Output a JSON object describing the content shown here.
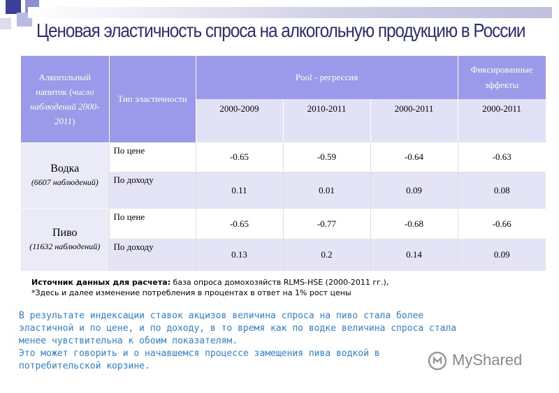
{
  "title": "Ценовая эластичность спроса на алкогольную продукцию в России",
  "table": {
    "header": {
      "drink_col": "Алкогольный напиток (",
      "drink_col_italic": "число наблюдений 2000-2011",
      "drink_col_end": ")",
      "type_col": "Тип эластичности",
      "pool": "Pool - регрессия",
      "fixed": "Фиксированные эффекты",
      "years": [
        "2000-2009",
        "2010-2011",
        "2000-2011",
        "2000-2011"
      ]
    },
    "groups": [
      {
        "name": "Водка",
        "obs": "(6607 наблюдений)",
        "rows": [
          {
            "type": "По цене",
            "values": [
              "-0.65",
              "-0.59",
              "-0.64",
              "-0.63"
            ]
          },
          {
            "type": "По доходу",
            "values": [
              "0.11",
              "0.01",
              "0.09",
              "0.08"
            ]
          }
        ]
      },
      {
        "name": "Пиво",
        "obs": "(11632 наблюдений)",
        "rows": [
          {
            "type": "По цене",
            "values": [
              "-0.65",
              "-0.77",
              "-0.68",
              "-0.66"
            ]
          },
          {
            "type": "По доходу",
            "values": [
              "0.13",
              "0.2",
              "0.14",
              "0.09"
            ]
          }
        ]
      }
    ]
  },
  "source": {
    "label": "Источник данных для расчета:",
    "text": " база опроса домохозяйств RLMS-HSE (2000-2011 гг.),",
    "note": "*Здесь и далее изменение потребления в процентах в ответ на 1% рост цены"
  },
  "conclusion": [
    "В результате индексации ставок акцизов величина спроса на пиво стала более",
    "эластичной и по цене, и по доходу, в то время как по водке величина спроса стала",
    "менее чувствительна к обоим показателям.",
    "Это может говорить и о начавшемся процессе замещения пива водкой в",
    "потребительской корзине."
  ],
  "logo": {
    "text": "MyShared"
  },
  "colors": {
    "title": "#2d2f6e",
    "header": "#9a99ea",
    "conclusion": "#2f7fd3"
  }
}
